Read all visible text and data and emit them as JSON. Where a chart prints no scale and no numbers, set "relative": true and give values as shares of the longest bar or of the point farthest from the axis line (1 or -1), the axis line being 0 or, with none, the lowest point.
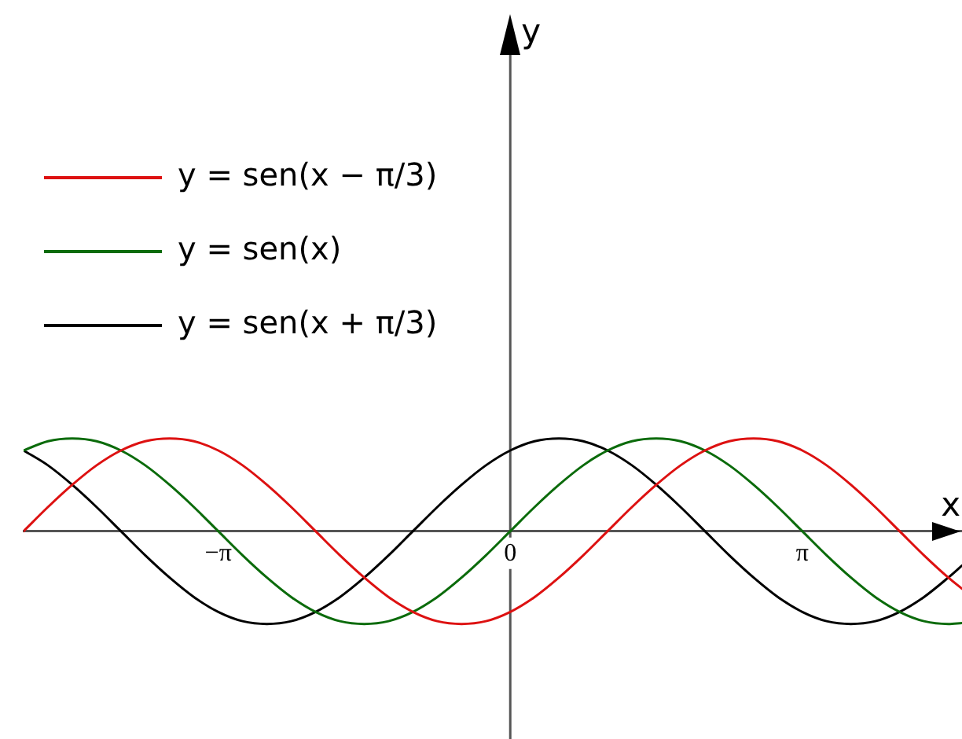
{
  "chart_data": {
    "type": "line",
    "xlabel": "x",
    "annotations": [
      "y"
    ],
    "relative": true,
    "legend": "top left",
    "tick_labels": "x",
    "xlim": [
      -5.236,
      4.86
    ],
    "xticks": [
      {
        "value": -3.1416,
        "label": "−π"
      },
      0,
      {
        "value": 3.1416,
        "label": "π"
      }
    ],
    "x": [
      -5.236,
      -4.9742,
      -4.7124,
      -4.4506,
      -4.1888,
      -3.927,
      -3.6652,
      -3.4034,
      -3.1416,
      -2.8798,
      -2.618,
      -2.3562,
      -2.0944,
      -1.8326,
      -1.5708,
      -1.309,
      -1.0472,
      -0.7854,
      -0.5236,
      -0.2618,
      0,
      0.2618,
      0.5236,
      0.7854,
      1.0472,
      1.309,
      1.5708,
      1.8326,
      2.0944,
      2.3562,
      2.618,
      2.8798,
      3.1416,
      3.4034,
      3.6652,
      3.927,
      4.1888,
      4.4506,
      4.7124,
      4.86
    ],
    "series": [
      {
        "name": "y = sen(x − π/3)",
        "color": "#dd1111",
        "values": [
          0,
          0.26,
          0.5,
          0.71,
          0.87,
          0.97,
          1,
          0.97,
          0.87,
          0.71,
          0.5,
          0.26,
          0,
          -0.26,
          -0.5,
          -0.71,
          -0.87,
          -0.97,
          -1,
          -0.97,
          -0.87,
          -0.71,
          -0.5,
          -0.26,
          0,
          0.26,
          0.5,
          0.71,
          0.87,
          0.97,
          1,
          0.97,
          0.87,
          0.71,
          0.5,
          0.26,
          0,
          -0.26,
          -0.5,
          -0.62
        ]
      },
      {
        "name": "y = sen(x)",
        "color": "#0b6b0b",
        "values": [
          0.87,
          0.97,
          1,
          0.97,
          0.87,
          0.71,
          0.5,
          0.26,
          0,
          -0.26,
          -0.5,
          -0.71,
          -0.87,
          -0.97,
          -1,
          -0.97,
          -0.87,
          -0.71,
          -0.5,
          -0.26,
          0,
          0.26,
          0.5,
          0.71,
          0.87,
          0.97,
          1,
          0.97,
          0.87,
          0.71,
          0.5,
          0.26,
          0,
          -0.26,
          -0.5,
          -0.71,
          -0.87,
          -0.97,
          -1,
          -0.99
        ]
      },
      {
        "name": "y = sen(x + π/3)",
        "color": "#000000",
        "values": [
          0.87,
          0.71,
          0.5,
          0.26,
          0,
          -0.26,
          -0.5,
          -0.71,
          -0.87,
          -0.97,
          -1,
          -0.97,
          -0.87,
          -0.71,
          -0.5,
          -0.26,
          0,
          0.26,
          0.5,
          0.71,
          0.87,
          0.97,
          1,
          0.97,
          0.87,
          0.71,
          0.5,
          0.26,
          0,
          -0.26,
          -0.5,
          -0.71,
          -0.87,
          -0.97,
          -1,
          -0.97,
          -0.87,
          -0.71,
          -0.5,
          -0.37
        ]
      }
    ]
  }
}
